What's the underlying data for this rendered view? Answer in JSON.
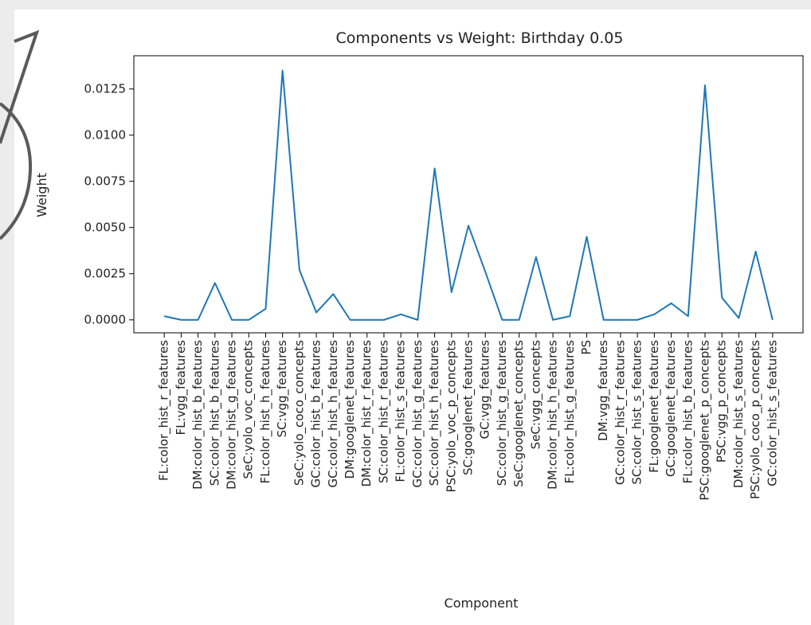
{
  "chart_data": {
    "type": "line",
    "title": "Components vs Weight: Birthday 0.05",
    "x_label": "Component",
    "y_label": "Weight",
    "categories": [
      "FL:color_hist_r_features",
      "FL:vgg_features",
      "DM:color_hist_b_features",
      "SC:color_hist_b_features",
      "DM:color_hist_g_features",
      "SeC:yolo_voc_concepts",
      "FL:color_hist_h_features",
      "SC:vgg_features",
      "SeC:yolo_coco_concepts",
      "GC:color_hist_b_features",
      "GC:color_hist_h_features",
      "DM:googlenet_features",
      "DM:color_hist_r_features",
      "SC:color_hist_r_features",
      "FL:color_hist_s_features",
      "GC:color_hist_g_features",
      "SC:color_hist_h_features",
      "PSC:yolo_voc_p_concepts",
      "SC:googlenet_features",
      "GC:vgg_features",
      "SC:color_hist_g_features",
      "SeC:googlenet_concepts",
      "SeC:vgg_concepts",
      "DM:color_hist_h_features",
      "FL:color_hist_g_features",
      "PS",
      "DM:vgg_features",
      "GC:color_hist_r_features",
      "SC:color_hist_s_features",
      "FL:googlenet_features",
      "GC:googlenet_features",
      "FL:color_hist_b_features",
      "PSC:googlenet_p_concepts",
      "PSC:vgg_p_concepts",
      "DM:color_hist_s_features",
      "PSC:yolo_coco_p_concepts",
      "GC:color_hist_s_features"
    ],
    "values": [
      0.0002,
      0.0,
      0.0,
      0.002,
      0.0,
      0.0,
      0.0006,
      0.0135,
      0.0027,
      0.0004,
      0.0014,
      0.0,
      0.0,
      0.0,
      0.0003,
      0.0,
      0.0082,
      0.0015,
      0.0051,
      0.0026,
      0.0,
      0.0,
      0.0034,
      0.0,
      0.0002,
      0.0045,
      0.0,
      0.0,
      0.0,
      0.0003,
      0.0009,
      0.0002,
      0.0127,
      0.0012,
      0.0001,
      0.0037,
      0.0
    ],
    "color": "#1f77b4",
    "ylim": [
      -0.0007,
      0.0143
    ],
    "yticks": [
      {
        "value": 0,
        "label": "0.0000"
      },
      0.0025,
      {
        "value": 0.005,
        "label": "0.0050"
      },
      0.0075,
      {
        "value": 0.01,
        "label": "0.0100"
      },
      0.0125
    ],
    "grid": false
  }
}
